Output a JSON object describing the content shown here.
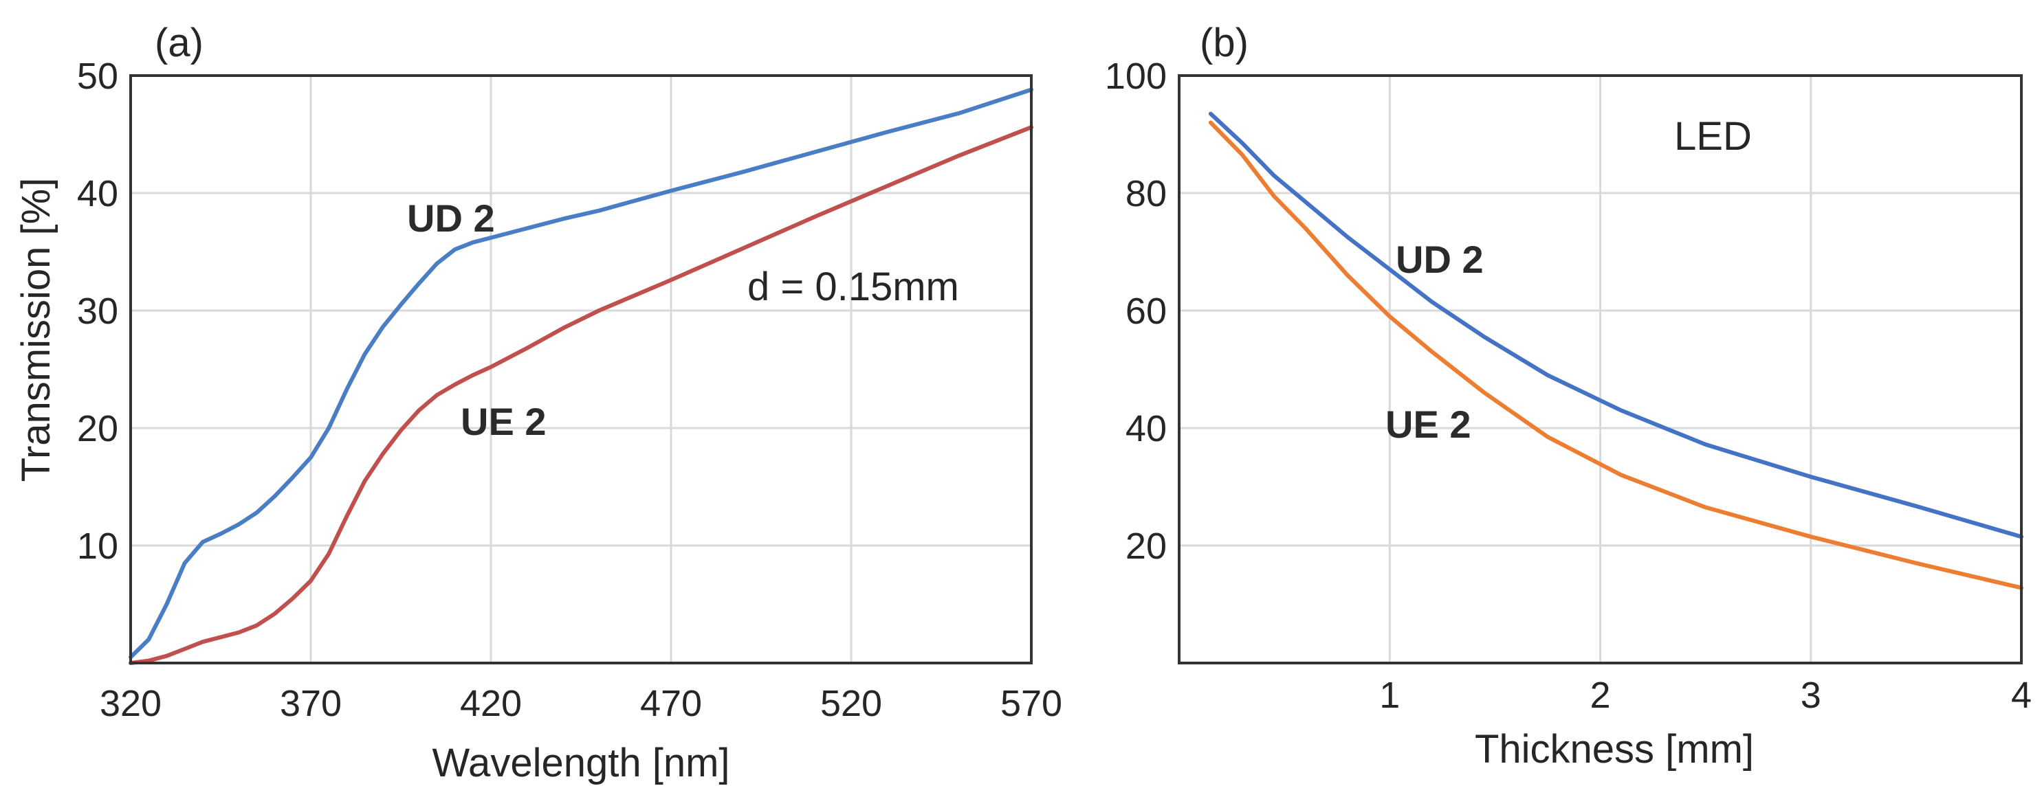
{
  "chart_data": [
    {
      "panel_label": "(a)",
      "type": "line",
      "xlabel": "Wavelength [nm]",
      "ylabel": "Transmission [%]",
      "xlim": [
        320,
        570
      ],
      "ylim": [
        0,
        50
      ],
      "xticks": [
        320,
        370,
        420,
        470,
        520,
        570
      ],
      "yticks": [
        10,
        20,
        30,
        40,
        50
      ],
      "grid": true,
      "annotation": "d = 0.15mm",
      "series": [
        {
          "name": "UD 2",
          "color": "#4a7ec4",
          "x": [
            320,
            325,
            330,
            335,
            340,
            345,
            350,
            355,
            360,
            365,
            370,
            375,
            380,
            385,
            390,
            395,
            400,
            405,
            410,
            415,
            420,
            430,
            440,
            450,
            470,
            490,
            510,
            530,
            550,
            570
          ],
          "y": [
            0.5,
            2,
            5,
            8.5,
            10.3,
            11,
            11.8,
            12.8,
            14.2,
            15.8,
            17.5,
            20,
            23.3,
            26.3,
            28.6,
            30.5,
            32.3,
            34,
            35.2,
            35.8,
            36.2,
            37,
            37.8,
            38.5,
            40.2,
            41.8,
            43.5,
            45.2,
            46.8,
            48.8
          ]
        },
        {
          "name": "UE 2",
          "color": "#c0504d",
          "x": [
            320,
            325,
            330,
            335,
            340,
            345,
            350,
            355,
            360,
            365,
            370,
            375,
            380,
            385,
            390,
            395,
            400,
            405,
            410,
            415,
            420,
            430,
            440,
            450,
            470,
            490,
            510,
            530,
            550,
            570
          ],
          "y": [
            0,
            0.2,
            0.6,
            1.2,
            1.8,
            2.2,
            2.6,
            3.2,
            4.2,
            5.5,
            7,
            9.3,
            12.5,
            15.5,
            17.8,
            19.8,
            21.5,
            22.8,
            23.7,
            24.5,
            25.2,
            26.8,
            28.5,
            30,
            32.6,
            35.3,
            38,
            40.6,
            43.2,
            45.6
          ]
        }
      ]
    },
    {
      "panel_label": "(b)",
      "type": "line",
      "xlabel": "Thickness [mm]",
      "ylabel": "",
      "xlim": [
        0,
        4
      ],
      "ylim": [
        0,
        100
      ],
      "xticks": [
        1,
        2,
        3,
        4
      ],
      "yticks": [
        20,
        40,
        60,
        80,
        100
      ],
      "grid": true,
      "annotation": "LED",
      "series": [
        {
          "name": "UD 2",
          "color": "#4472c4",
          "x": [
            0.15,
            0.3,
            0.45,
            0.6,
            0.8,
            1.0,
            1.2,
            1.45,
            1.75,
            2.1,
            2.5,
            3.0,
            3.5,
            4.0
          ],
          "y": [
            93.5,
            88.5,
            83,
            78.5,
            72.5,
            67,
            61.5,
            55.5,
            49,
            43,
            37.2,
            31.7,
            26.7,
            21.5
          ]
        },
        {
          "name": "UE 2",
          "color": "#ed7d31",
          "x": [
            0.15,
            0.3,
            0.45,
            0.6,
            0.8,
            1.0,
            1.2,
            1.45,
            1.75,
            2.1,
            2.5,
            3.0,
            3.5,
            4.0
          ],
          "y": [
            92,
            86.5,
            79.5,
            74,
            66,
            59,
            53,
            46,
            38.5,
            32,
            26.5,
            21.5,
            17,
            12.8
          ]
        }
      ]
    }
  ]
}
